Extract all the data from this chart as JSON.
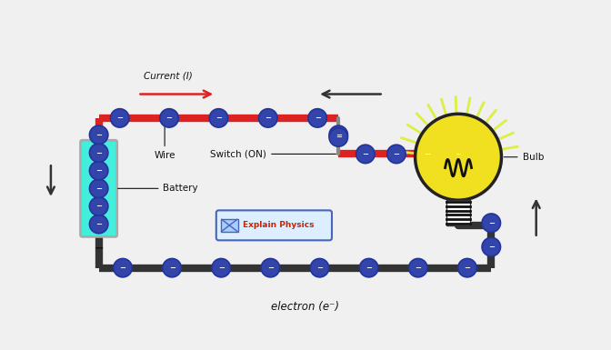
{
  "bg_color": "#f0f0f0",
  "wire_color_red": "#dd2222",
  "wire_color_dark": "#333333",
  "electron_fill": "#3344aa",
  "electron_edge": "#223399",
  "electron_minus_color": "#ffffff",
  "battery_fill": "#44eedd",
  "battery_outline": "#aaaaaa",
  "bulb_glass_color": "#f0e020",
  "bulb_outline_color": "#222222",
  "bulb_ray_color": "#ddee44",
  "bulb_filament_color": "#111111",
  "switch_node_color": "#888888",
  "arrow_color_red": "#dd2222",
  "arrow_color_dark": "#333333",
  "text_color": "#111111",
  "explain_box_edge": "#4466bb",
  "explain_box_face": "#ddeeff",
  "explain_text_color": "#cc2200",
  "title_text": "electron (e⁻)",
  "current_label": "Current (I)",
  "wire_label": "Wire",
  "switch_label": "Switch (ON)",
  "battery_label": "Battery",
  "bulb_label": "Bulb",
  "explain_label": "Explain Physics",
  "fig_width": 6.72,
  "fig_height": 3.85,
  "dpi": 100
}
